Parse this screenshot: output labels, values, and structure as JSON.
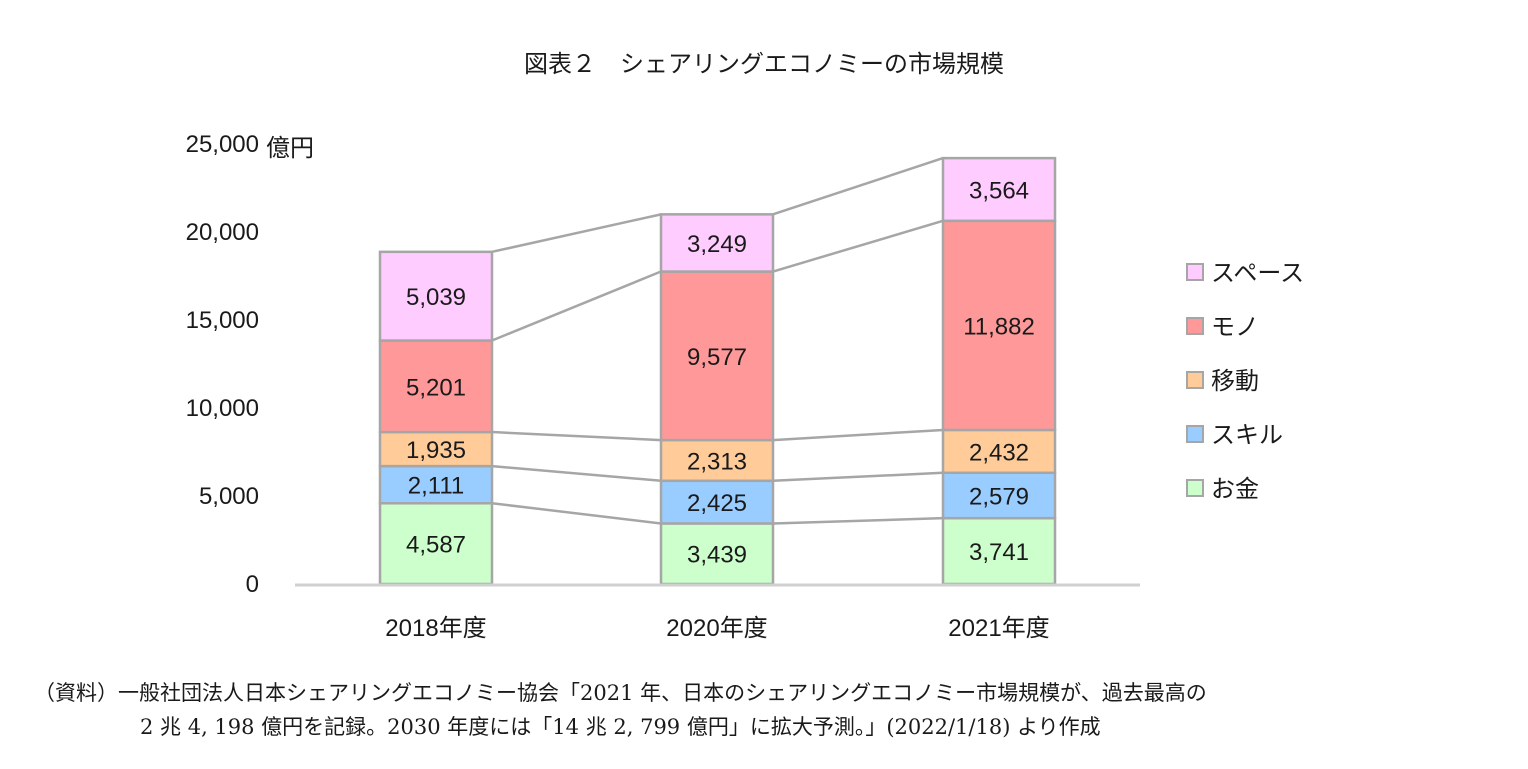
{
  "title": "図表２　シェアリングエコノミーの市場規模",
  "source": {
    "line1": "（資料）一般社団法人日本シェアリングエコノミー協会「2021 年、日本のシェアリングエコノミー市場規模が、過去最高の",
    "line2": "2 兆 4, 198 億円を記録。2030 年度には「14 兆 2, 799 億円」に拡大予測。」(2022/1/18) より作成"
  },
  "chart_data": {
    "type": "bar",
    "stacked": true,
    "title": "図表２　シェアリングエコノミーの市場規模",
    "unit_label": "億円",
    "categories": [
      "2018年度",
      "2020年度",
      "2021年度"
    ],
    "series": [
      {
        "name": "お金",
        "color": "#CCFFCC",
        "values": [
          4587,
          3439,
          3741
        ],
        "labels": [
          "4,587",
          "3,439",
          "3,741"
        ]
      },
      {
        "name": "スキル",
        "color": "#99CCFF",
        "values": [
          2111,
          2425,
          2579
        ],
        "labels": [
          "2,111",
          "2,425",
          "2,579"
        ]
      },
      {
        "name": "移動",
        "color": "#FFCC99",
        "values": [
          1935,
          2313,
          2432
        ],
        "labels": [
          "1,935",
          "2,313",
          "2,432"
        ]
      },
      {
        "name": "モノ",
        "color": "#FF9999",
        "values": [
          5201,
          9577,
          11882
        ],
        "labels": [
          "5,201",
          "9,577",
          "11,882"
        ]
      },
      {
        "name": "スペース",
        "color": "#FFCCFF",
        "values": [
          5039,
          3249,
          3564
        ],
        "labels": [
          "5,039",
          "3,249",
          "3,564"
        ]
      }
    ],
    "ylim": [
      0,
      25000
    ],
    "yticks": [
      0,
      5000,
      10000,
      15000,
      20000,
      25000
    ],
    "ytick_labels": [
      "0",
      "5,000",
      "10,000",
      "15,000",
      "20,000",
      "25,000"
    ],
    "legend_position": "right",
    "grid": false,
    "series_lines": true
  }
}
